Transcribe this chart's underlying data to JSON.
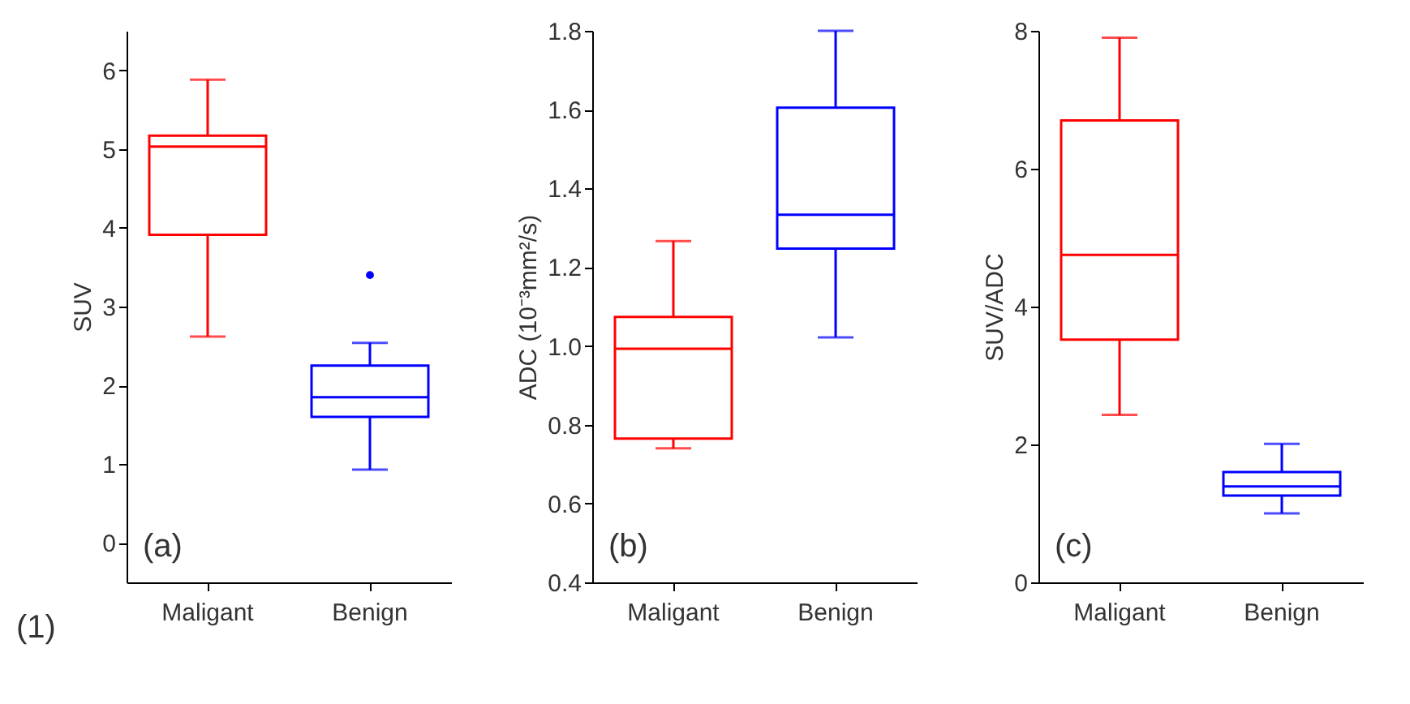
{
  "chart_data": [
    {
      "type": "box",
      "ylabel": "SUV",
      "categories": [
        "Maligant",
        "Benign"
      ],
      "colors": [
        "#ff0000",
        "#0000ff"
      ],
      "boxes": [
        {
          "low": 2.62,
          "q1": 3.91,
          "median": 5.03,
          "q3": 5.17,
          "high": 5.88
        },
        {
          "low": 0.93,
          "q1": 1.6,
          "median": 1.85,
          "q3": 2.25,
          "high": 2.54,
          "outliers": [
            3.4
          ]
        }
      ],
      "ylim": [
        -0.5,
        6.5
      ],
      "yticks": [
        0,
        1,
        2,
        3,
        4,
        5,
        6
      ],
      "annotations": [
        "(a)",
        "(1)"
      ]
    },
    {
      "type": "box",
      "ylabel": "ADC (10⁻³mm²/s)",
      "categories": [
        "Maligant",
        "Benign"
      ],
      "colors": [
        "#ff0000",
        "#0000ff"
      ],
      "boxes": [
        {
          "low": 0.74,
          "q1": 0.765,
          "median": 0.993,
          "q3": 1.074,
          "high": 1.266
        },
        {
          "low": 1.022,
          "q1": 1.247,
          "median": 1.333,
          "q3": 1.605,
          "high": 1.8
        }
      ],
      "ylim": [
        0.4,
        1.8
      ],
      "yticks": [
        0.4,
        0.6,
        0.8,
        {
          "value": 1,
          "label": "1.0"
        },
        1.2,
        1.4,
        1.6,
        1.8
      ],
      "annotations": [
        "(b)"
      ]
    },
    {
      "type": "box",
      "ylabel": "SUV/ADC",
      "categories": [
        "Maligant",
        "Benign"
      ],
      "colors": [
        "#ff0000",
        "#0000ff"
      ],
      "boxes": [
        {
          "low": 2.43,
          "q1": 3.52,
          "median": 4.75,
          "q3": 6.7,
          "high": 7.9
        },
        {
          "low": 1.0,
          "q1": 1.26,
          "median": 1.39,
          "q3": 1.6,
          "high": 2.01
        }
      ],
      "ylim": [
        0,
        8
      ],
      "yticks": [
        0,
        2,
        4,
        6,
        8
      ],
      "annotations": [
        "(c)"
      ]
    }
  ]
}
